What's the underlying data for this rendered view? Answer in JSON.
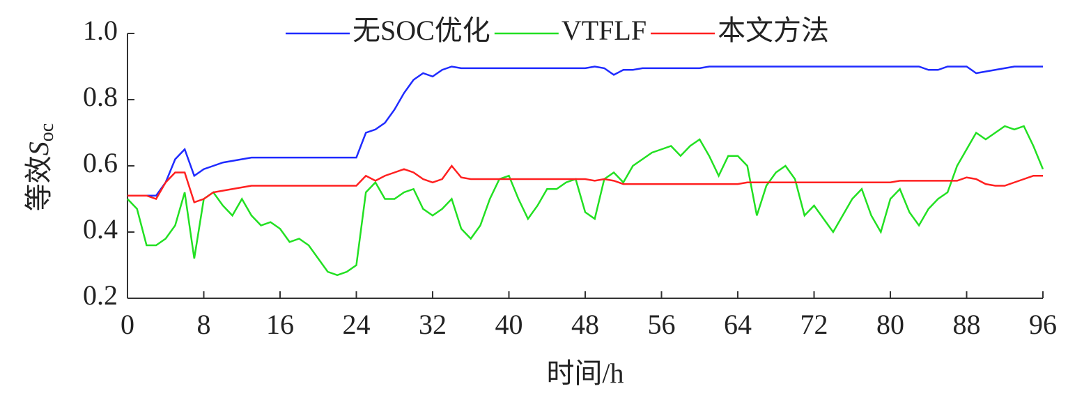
{
  "chart_data": {
    "type": "line",
    "ylabel": {
      "text": "等效",
      "var": "S",
      "sub": "oc"
    },
    "xlabel": "时间/h",
    "x": [
      0,
      1,
      2,
      3,
      4,
      5,
      6,
      7,
      8,
      9,
      10,
      11,
      12,
      13,
      14,
      15,
      16,
      17,
      18,
      19,
      20,
      21,
      22,
      23,
      24,
      25,
      26,
      27,
      28,
      29,
      30,
      31,
      32,
      33,
      34,
      35,
      36,
      37,
      38,
      39,
      40,
      41,
      42,
      43,
      44,
      45,
      46,
      47,
      48,
      49,
      50,
      51,
      52,
      53,
      54,
      55,
      56,
      57,
      58,
      59,
      60,
      61,
      62,
      63,
      64,
      65,
      66,
      67,
      68,
      69,
      70,
      71,
      72,
      73,
      74,
      75,
      76,
      77,
      78,
      79,
      80,
      81,
      82,
      83,
      84,
      85,
      86,
      87,
      88,
      89,
      90,
      91,
      92,
      93,
      94,
      95,
      96
    ],
    "series": [
      {
        "name": "无SOC优化",
        "color": "#1f2bff",
        "values": [
          0.51,
          0.51,
          0.51,
          0.51,
          0.55,
          0.62,
          0.65,
          0.57,
          0.59,
          0.6,
          0.61,
          0.615,
          0.62,
          0.625,
          0.625,
          0.625,
          0.625,
          0.625,
          0.625,
          0.625,
          0.625,
          0.625,
          0.625,
          0.625,
          0.625,
          0.7,
          0.71,
          0.73,
          0.77,
          0.82,
          0.86,
          0.88,
          0.87,
          0.89,
          0.9,
          0.895,
          0.895,
          0.895,
          0.895,
          0.895,
          0.895,
          0.895,
          0.895,
          0.895,
          0.895,
          0.895,
          0.895,
          0.895,
          0.895,
          0.9,
          0.895,
          0.875,
          0.89,
          0.89,
          0.895,
          0.895,
          0.895,
          0.895,
          0.895,
          0.895,
          0.895,
          0.9,
          0.9,
          0.9,
          0.9,
          0.9,
          0.9,
          0.9,
          0.9,
          0.9,
          0.9,
          0.9,
          0.9,
          0.9,
          0.9,
          0.9,
          0.9,
          0.9,
          0.9,
          0.9,
          0.9,
          0.9,
          0.9,
          0.9,
          0.89,
          0.89,
          0.9,
          0.9,
          0.9,
          0.88,
          0.885,
          0.89,
          0.895,
          0.9,
          0.9,
          0.9,
          0.9
        ]
      },
      {
        "name": "VTFLF",
        "color": "#22e022",
        "values": [
          0.5,
          0.47,
          0.36,
          0.36,
          0.38,
          0.42,
          0.52,
          0.32,
          0.5,
          0.52,
          0.48,
          0.45,
          0.5,
          0.45,
          0.42,
          0.43,
          0.41,
          0.37,
          0.38,
          0.36,
          0.32,
          0.28,
          0.27,
          0.28,
          0.3,
          0.52,
          0.55,
          0.5,
          0.5,
          0.52,
          0.53,
          0.47,
          0.45,
          0.47,
          0.5,
          0.41,
          0.38,
          0.42,
          0.5,
          0.56,
          0.57,
          0.5,
          0.44,
          0.48,
          0.53,
          0.53,
          0.55,
          0.56,
          0.46,
          0.44,
          0.56,
          0.58,
          0.55,
          0.6,
          0.62,
          0.64,
          0.65,
          0.66,
          0.63,
          0.66,
          0.68,
          0.63,
          0.57,
          0.63,
          0.63,
          0.6,
          0.45,
          0.54,
          0.58,
          0.6,
          0.56,
          0.45,
          0.48,
          0.44,
          0.4,
          0.45,
          0.5,
          0.53,
          0.45,
          0.4,
          0.5,
          0.53,
          0.46,
          0.42,
          0.47,
          0.5,
          0.52,
          0.6,
          0.65,
          0.7,
          0.68,
          0.7,
          0.72,
          0.71,
          0.72,
          0.66,
          0.59
        ]
      },
      {
        "name": "本文方法",
        "color": "#ff2020",
        "values": [
          0.51,
          0.51,
          0.51,
          0.5,
          0.55,
          0.58,
          0.58,
          0.49,
          0.5,
          0.52,
          0.525,
          0.53,
          0.535,
          0.54,
          0.54,
          0.54,
          0.54,
          0.54,
          0.54,
          0.54,
          0.54,
          0.54,
          0.54,
          0.54,
          0.54,
          0.57,
          0.555,
          0.57,
          0.58,
          0.59,
          0.58,
          0.56,
          0.55,
          0.56,
          0.6,
          0.565,
          0.56,
          0.56,
          0.56,
          0.56,
          0.56,
          0.56,
          0.56,
          0.56,
          0.56,
          0.56,
          0.56,
          0.56,
          0.56,
          0.555,
          0.56,
          0.555,
          0.545,
          0.545,
          0.545,
          0.545,
          0.545,
          0.545,
          0.545,
          0.545,
          0.545,
          0.545,
          0.545,
          0.545,
          0.545,
          0.55,
          0.55,
          0.55,
          0.55,
          0.55,
          0.55,
          0.55,
          0.55,
          0.55,
          0.55,
          0.55,
          0.55,
          0.55,
          0.55,
          0.55,
          0.55,
          0.555,
          0.555,
          0.555,
          0.555,
          0.555,
          0.555,
          0.555,
          0.565,
          0.56,
          0.545,
          0.54,
          0.54,
          0.55,
          0.56,
          0.57,
          0.57
        ]
      }
    ],
    "xlim": [
      0,
      96
    ],
    "xticks": [
      0,
      8,
      16,
      24,
      32,
      40,
      48,
      56,
      64,
      72,
      80,
      88,
      96
    ],
    "ylim": [
      0.2,
      1.0
    ],
    "yticks": [
      0.2,
      0.4,
      0.6,
      0.8,
      {
        "value": 1.0,
        "label": "1.0"
      }
    ],
    "grid": false,
    "legend": "top"
  }
}
